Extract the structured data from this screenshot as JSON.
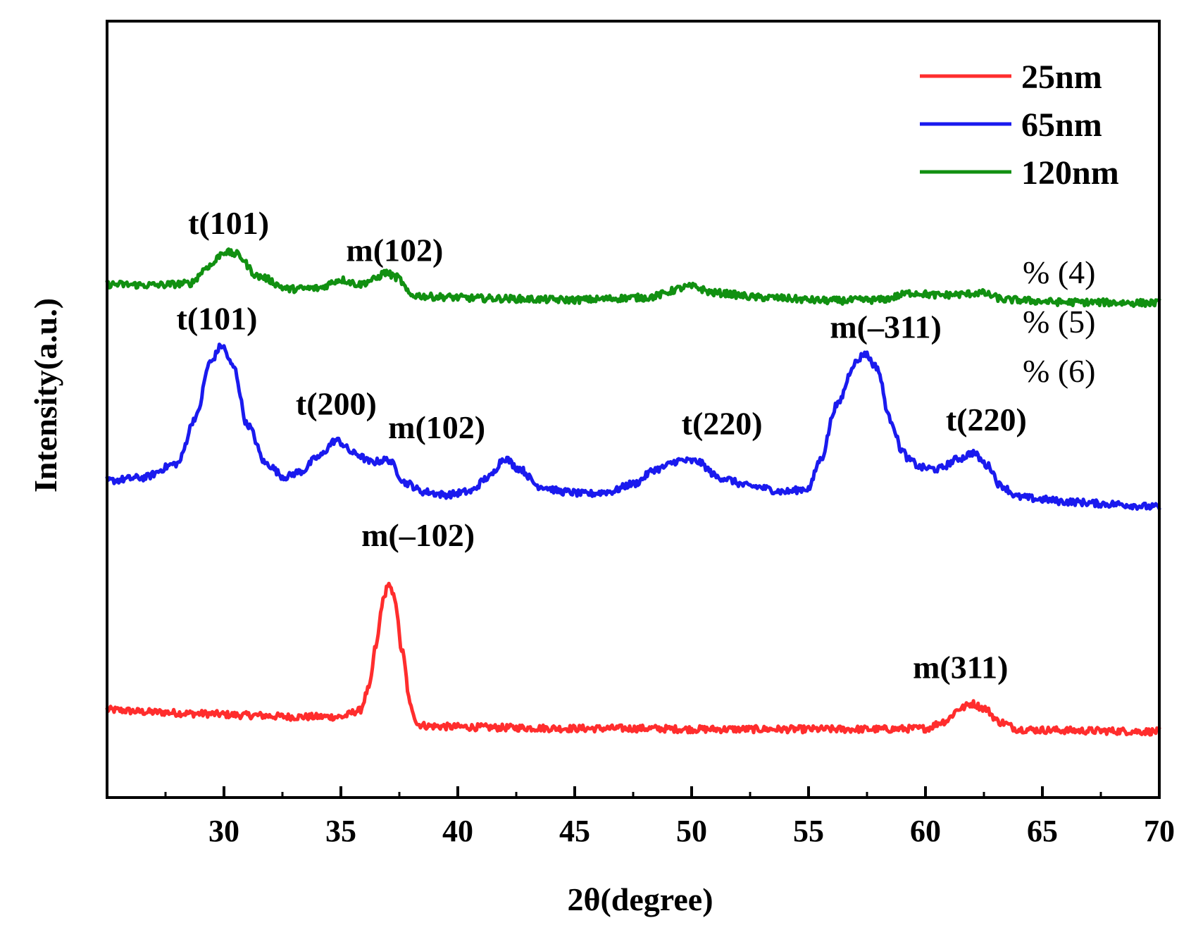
{
  "chart_data": {
    "type": "line",
    "xlabel": "2θ(degree)",
    "ylabel": "Intensity(a.u.)",
    "xlim": [
      25,
      70
    ],
    "ylim": [
      0,
      100
    ],
    "xticks": [
      30,
      35,
      40,
      45,
      50,
      55,
      60,
      65,
      70
    ],
    "y_ticks_shown": false,
    "legend_position": "top-right",
    "side_notes": [
      "% (4)",
      "% (5)",
      "% (6)"
    ],
    "series": [
      {
        "name": "25nm",
        "color": "#ff2d2d",
        "x": [
          25,
          27,
          29,
          31,
          33,
          34,
          35,
          35.8,
          36.2,
          36.5,
          36.8,
          37,
          37.3,
          37.6,
          38,
          38.3,
          38.8,
          40,
          42,
          45,
          48,
          50,
          53,
          55,
          58,
          60,
          60.8,
          61.5,
          62,
          62.5,
          63.2,
          64,
          65,
          67,
          70
        ],
        "y": [
          11.3,
          11.0,
          10.8,
          10.6,
          10.4,
          10.4,
          10.4,
          11.2,
          14,
          19.5,
          25.3,
          27.4,
          25.8,
          19,
          11.6,
          9.4,
          9.2,
          9.1,
          9.0,
          8.9,
          8.9,
          8.8,
          8.8,
          8.8,
          8.8,
          8.9,
          9.8,
          11.5,
          12.1,
          11.5,
          9.7,
          8.8,
          8.7,
          8.6,
          8.5
        ]
      },
      {
        "name": "65nm",
        "color": "#1a1aee",
        "x": [
          25,
          26.5,
          28,
          28.8,
          29.4,
          29.9,
          30.4,
          31,
          31.8,
          32.6,
          33.3,
          34,
          34.8,
          35.6,
          36.3,
          37,
          37.8,
          38.5,
          39.5,
          40.5,
          41.3,
          42,
          42.6,
          43.5,
          44.5,
          45.5,
          46.5,
          47.5,
          48.5,
          49.5,
          50.2,
          51.2,
          52.5,
          54,
          55,
          55.5,
          56.2,
          57,
          57.4,
          57.9,
          58.5,
          59,
          59.3,
          59.8,
          60.5,
          61.5,
          62,
          62.7,
          63.2,
          64,
          65,
          66,
          68,
          70
        ],
        "y": [
          40.8,
          41.2,
          43,
          49,
          56,
          58.2,
          55.5,
          48,
          43,
          41.3,
          42,
          43.8,
          46,
          44.3,
          43.2,
          43.5,
          40.5,
          39.4,
          39.0,
          39.4,
          41.2,
          43.7,
          42.4,
          40.1,
          39.4,
          39.1,
          39.4,
          40.4,
          42.3,
          43.4,
          43.3,
          41.2,
          40.1,
          39.4,
          39.8,
          43.5,
          50.5,
          56,
          57.2,
          55.5,
          48.7,
          44.7,
          43.5,
          42.5,
          42.3,
          43.7,
          44.4,
          42.7,
          40.2,
          38.7,
          38.4,
          38.1,
          37.8,
          37.4
        ]
      },
      {
        "name": "120nm",
        "color": "#119011",
        "x": [
          25,
          27,
          28.5,
          29.4,
          30,
          30.5,
          31.5,
          32.8,
          34,
          35,
          35.8,
          36.4,
          36.9,
          37.4,
          38,
          39,
          41,
          45,
          48,
          50,
          51,
          53,
          56,
          58,
          59.5,
          60.5,
          61.5,
          62.3,
          63.5,
          66,
          70
        ],
        "y": [
          66.1,
          66.0,
          66.2,
          68.5,
          70.3,
          70.0,
          67.1,
          65.5,
          65.6,
          66.7,
          66.1,
          66.7,
          67.6,
          67.0,
          64.7,
          64.5,
          64.3,
          64.1,
          64.4,
          65.8,
          65.0,
          64.4,
          64.0,
          64.1,
          65.0,
          64.7,
          64.8,
          65.0,
          64.1,
          63.8,
          63.7
        ]
      }
    ],
    "annotations": [
      {
        "text": "t(101)",
        "x": 30.2,
        "y": 72.6,
        "series": "120nm"
      },
      {
        "text": "m(102)",
        "x": 37.3,
        "y": 69.1,
        "series": "120nm"
      },
      {
        "text": "t(101)",
        "x": 29.7,
        "y": 60.3,
        "series": "65nm"
      },
      {
        "text": "t(200)",
        "x": 34.8,
        "y": 49.3,
        "series": "65nm"
      },
      {
        "text": "m(102)",
        "x": 39.1,
        "y": 46.3,
        "series": "65nm"
      },
      {
        "text": "t(220)",
        "x": 51.3,
        "y": 46.8,
        "series": "65nm"
      },
      {
        "text": "m(–311)",
        "x": 58.3,
        "y": 59.2,
        "series": "65nm"
      },
      {
        "text": "t(220)",
        "x": 62.6,
        "y": 47.3,
        "series": "65nm"
      },
      {
        "text": "m(–102)",
        "x": 38.3,
        "y": 32.4,
        "series": "25nm"
      },
      {
        "text": "m(311)",
        "x": 61.5,
        "y": 15.4,
        "series": "25nm"
      }
    ]
  }
}
